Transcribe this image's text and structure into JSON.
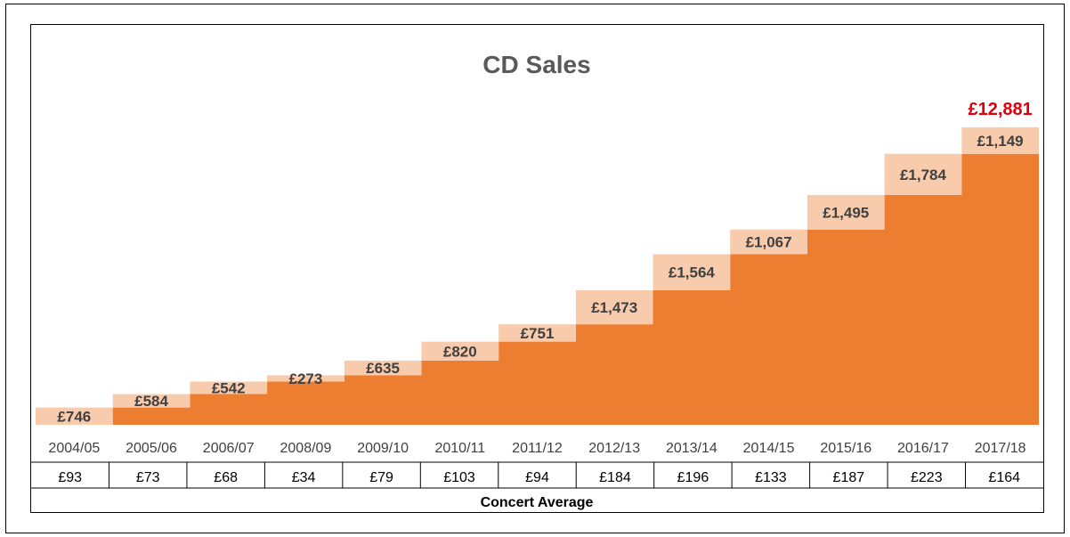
{
  "chart_data": {
    "type": "area",
    "title": "CD Sales",
    "total_label": "£12,881",
    "categories": [
      "2004/05",
      "2005/06",
      "2006/07",
      "2008/09",
      "2009/10",
      "2010/11",
      "2011/12",
      "2012/13",
      "2013/14",
      "2014/15",
      "2015/16",
      "2016/17",
      "2017/18"
    ],
    "values": [
      746,
      584,
      542,
      273,
      635,
      820,
      751,
      1473,
      1564,
      1067,
      1495,
      1784,
      1149
    ],
    "value_labels": [
      "£746",
      "£584",
      "£542",
      "£273",
      "£635",
      "£820",
      "£751",
      "£1,473",
      "£1,564",
      "£1,067",
      "£1,495",
      "£1,784",
      "£1,149"
    ],
    "cumulative_total": 12881,
    "ylim": [
      0,
      12881
    ],
    "table": {
      "title": "Concert Average",
      "values": [
        "£93",
        "£73",
        "£68",
        "£34",
        "£79",
        "£103",
        "£94",
        "£184",
        "£196",
        "£133",
        "£187",
        "£223",
        "£164"
      ]
    },
    "colors": {
      "area": "#ed7d31",
      "step": "#f8cbad",
      "total": "#e0000d"
    },
    "grid": false,
    "legend": "none"
  }
}
